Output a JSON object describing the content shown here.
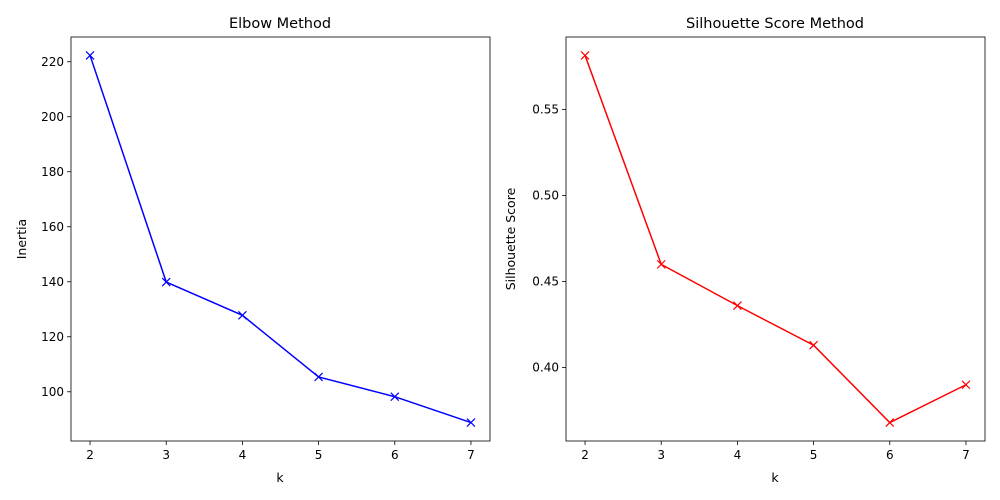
{
  "chart_data": [
    {
      "type": "line",
      "title": "Elbow Method",
      "xlabel": "k",
      "ylabel": "Inertia",
      "x": [
        2,
        3,
        4,
        5,
        6,
        7
      ],
      "series": [
        {
          "values": [
            222.3,
            139.9,
            127.8,
            105.4,
            98.2,
            88.8
          ],
          "color": "#0000ff",
          "marker": "x"
        }
      ],
      "xticks": [
        2,
        3,
        4,
        5,
        6,
        7
      ],
      "yticks": [
        100,
        120,
        140,
        160,
        180,
        200,
        220
      ],
      "xlim": [
        1.75,
        7.25
      ],
      "ylim": [
        82.1,
        229.0
      ],
      "grid": false
    },
    {
      "type": "line",
      "title": "Silhouette Score Method",
      "xlabel": "k",
      "ylabel": "Silhouette Score",
      "x": [
        2,
        3,
        4,
        5,
        6,
        7
      ],
      "series": [
        {
          "values": [
            0.5815,
            0.46,
            0.436,
            0.413,
            0.368,
            0.39
          ],
          "color": "#ff0000",
          "marker": "x"
        }
      ],
      "xticks": [
        2,
        3,
        4,
        5,
        6,
        7
      ],
      "yticks": [
        0.4,
        0.45,
        0.5,
        0.55
      ],
      "yticklabels": [
        "0.40",
        "0.45",
        "0.50",
        "0.55"
      ],
      "xlim": [
        1.75,
        7.25
      ],
      "ylim": [
        0.3573,
        0.5922
      ],
      "grid": false
    }
  ]
}
